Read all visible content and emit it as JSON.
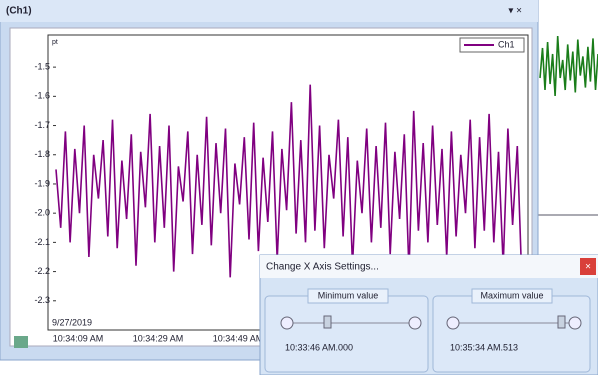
{
  "window": {
    "title": "(Ch1)",
    "controls": "▾ ×"
  },
  "chart_data": [
    {
      "type": "line",
      "unit": "pt",
      "date": "9/27/2019",
      "x_labels": [
        "10:34:09 AM",
        "10:34:29 AM",
        "10:34:49 AM"
      ],
      "ylim": [
        -2.4,
        -1.39
      ],
      "yticks": [
        -1.5,
        -1.6,
        -1.7,
        -1.8,
        -1.9,
        {
          "value": -2,
          "label": "-2.0"
        },
        -2.1,
        -2.2,
        -2.3
      ],
      "series": [
        {
          "name": "Ch1",
          "color": "#800080",
          "values": [
            -1.85,
            -2.05,
            -1.72,
            -2.1,
            -1.78,
            -2.0,
            -1.7,
            -2.15,
            -1.8,
            -1.95,
            -1.75,
            -2.08,
            -1.68,
            -2.12,
            -1.82,
            -2.02,
            -1.73,
            -2.18,
            -1.79,
            -1.98,
            -1.66,
            -2.1,
            -1.77,
            -2.05,
            -1.7,
            -2.2,
            -1.84,
            -1.96,
            -1.72,
            -2.14,
            -1.8,
            -2.04,
            -1.67,
            -2.11,
            -1.76,
            -2.0,
            -1.71,
            -2.22,
            -1.83,
            -1.97,
            -1.74,
            -2.09,
            -1.69,
            -2.13,
            -1.81,
            -2.03,
            -1.72,
            -2.16,
            -1.78,
            -1.99,
            -1.62,
            -2.07,
            -1.75,
            -2.1,
            -1.56,
            -2.06,
            -1.7,
            -2.12,
            -1.8,
            -1.95,
            -1.68,
            -2.08,
            -1.74,
            -2.18,
            -1.82,
            -2.0,
            -1.71,
            -2.1,
            -1.77,
            -2.05,
            -1.69,
            -2.14,
            -1.79,
            -2.02,
            -1.73,
            -2.2,
            -1.65,
            -2.06,
            -1.76,
            -2.1,
            -1.7,
            -2.04,
            -1.78,
            -2.15,
            -1.72,
            -2.08,
            -1.8,
            -2.0,
            -1.68,
            -2.12,
            -1.74,
            -2.06,
            -1.66,
            -2.1,
            -1.79,
            -2.18,
            -1.71,
            -2.04,
            -1.77,
            -2.25
          ]
        }
      ]
    },
    {
      "type": "line",
      "ylim": [
        0,
        1
      ],
      "series": [
        {
          "color": "#1a7d1a",
          "values": [
            0.6,
            0.85,
            0.5,
            0.9,
            0.55,
            0.8,
            0.45,
            0.95,
            0.6,
            0.75,
            0.5,
            0.88,
            0.58,
            0.82,
            0.48,
            0.92,
            0.62,
            0.78,
            0.52,
            0.86,
            0.57,
            0.93,
            0.5,
            0.8
          ]
        }
      ]
    }
  ],
  "dialog": {
    "title": "Change X Axis Settings...",
    "min_label": "Minimum value",
    "max_label": "Maximum value",
    "min_value": "10:33:46 AM.000",
    "max_value": "10:35:34 AM.513"
  }
}
